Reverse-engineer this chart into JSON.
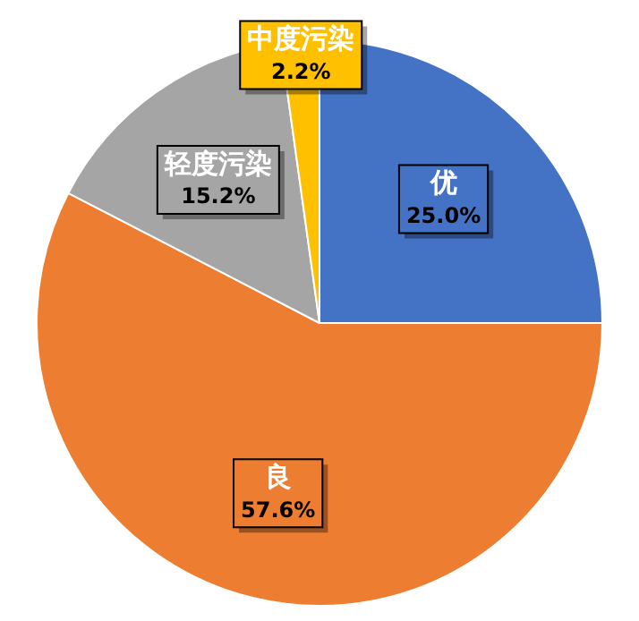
{
  "chart_data": {
    "type": "pie",
    "categories": [
      "优",
      "良",
      "轻度污染",
      "中度污染"
    ],
    "values": [
      25.0,
      57.6,
      15.2,
      2.2
    ],
    "colors": [
      "#4472c4",
      "#ed7d31",
      "#a5a5a5",
      "#ffc000"
    ],
    "value_labels": [
      "25.0%",
      "57.6%",
      "15.2%",
      "2.2%"
    ],
    "legend": false
  }
}
